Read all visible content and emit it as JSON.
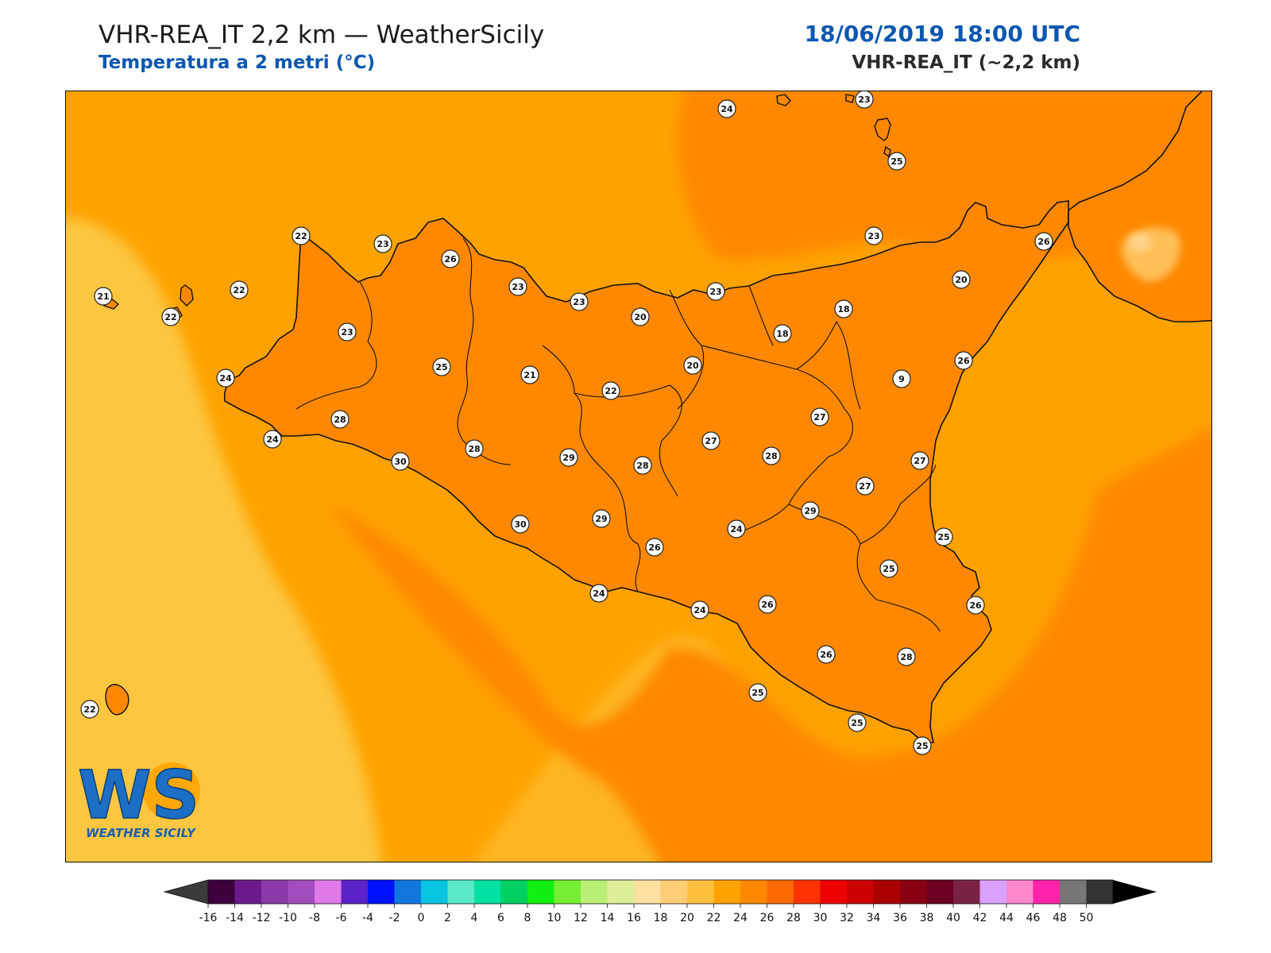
{
  "header": {
    "title": "VHR-REA_IT 2,2 km — WeatherSicily",
    "subtitle": "Temperatura a 2 metri (°C)",
    "datetime": "18/06/2019 18:00 UTC",
    "model": "VHR-REA_IT (~2,2 km)"
  },
  "logo": {
    "letters": "WS",
    "text": "WEATHER SICILY"
  },
  "colors": {
    "sea_light": "#fdc640",
    "sea_orange": "#ffa200",
    "land_base": "#ff8800",
    "warm_26": "#ff6a00",
    "hot_28": "#ff3300",
    "hot_30": "#e60000",
    "cool_20": "#ffbf59",
    "cool_18": "#ffd48c",
    "coast": "#111111"
  },
  "colorbar": {
    "ticks": [
      "-16",
      "-14",
      "-12",
      "-10",
      "-8",
      "-6",
      "-4",
      "-2",
      "0",
      "2",
      "4",
      "6",
      "8",
      "10",
      "12",
      "14",
      "16",
      "18",
      "20",
      "22",
      "24",
      "26",
      "28",
      "30",
      "32",
      "34",
      "36",
      "38",
      "40",
      "42",
      "44",
      "46",
      "48",
      "50"
    ],
    "colors": [
      "#3d003d",
      "#6b1a8c",
      "#8a3aa8",
      "#a24dbd",
      "#e07ae8",
      "#5a22c8",
      "#0011ff",
      "#1177dd",
      "#09c4e0",
      "#5be8c8",
      "#00e0a0",
      "#00d060",
      "#11ee11",
      "#77ee33",
      "#bbee77",
      "#ddee99",
      "#ffe0a0",
      "#ffcc77",
      "#ffc040",
      "#ffa200",
      "#ff8800",
      "#ff6a00",
      "#ff3300",
      "#ee0000",
      "#cc0000",
      "#aa0000",
      "#880011",
      "#6b0022",
      "#7a2244",
      "#d9a0ff",
      "#ff88cc",
      "#ff22aa",
      "#777777",
      "#333333"
    ]
  },
  "station_values": [
    {
      "v": "24"
    },
    {
      "v": "23"
    },
    {
      "v": "25"
    },
    {
      "v": "22"
    },
    {
      "v": "23"
    },
    {
      "v": "26"
    },
    {
      "v": "21"
    },
    {
      "v": "22"
    },
    {
      "v": "22"
    },
    {
      "v": "23"
    },
    {
      "v": "23"
    },
    {
      "v": "23"
    },
    {
      "v": "20"
    },
    {
      "v": "23"
    },
    {
      "v": "23"
    },
    {
      "v": "20"
    },
    {
      "v": "26"
    },
    {
      "v": "18"
    },
    {
      "v": "18"
    },
    {
      "v": "26"
    },
    {
      "v": "24"
    },
    {
      "v": "25"
    },
    {
      "v": "21"
    },
    {
      "v": "20"
    },
    {
      "v": "22"
    },
    {
      "v": "9"
    },
    {
      "v": "28"
    },
    {
      "v": "24"
    },
    {
      "v": "30"
    },
    {
      "v": "28"
    },
    {
      "v": "29"
    },
    {
      "v": "28"
    },
    {
      "v": "27"
    },
    {
      "v": "28"
    },
    {
      "v": "27"
    },
    {
      "v": "27"
    },
    {
      "v": "27"
    },
    {
      "v": "30"
    },
    {
      "v": "29"
    },
    {
      "v": "29"
    },
    {
      "v": "24"
    },
    {
      "v": "26"
    },
    {
      "v": "25"
    },
    {
      "v": "25"
    },
    {
      "v": "24"
    },
    {
      "v": "24"
    },
    {
      "v": "26"
    },
    {
      "v": "26"
    },
    {
      "v": "26"
    },
    {
      "v": "28"
    },
    {
      "v": "25"
    },
    {
      "v": "25"
    },
    {
      "v": "25"
    },
    {
      "v": "22"
    }
  ]
}
